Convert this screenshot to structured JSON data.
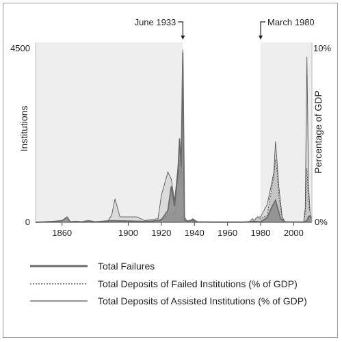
{
  "chart_data": {
    "type": "area",
    "title": "",
    "xlabel": "",
    "ylabel_left": "Institutions",
    "ylabel_right": "Percentage of GDP",
    "xlim": [
      1844,
      2011
    ],
    "xticks": [
      "1860",
      "1900",
      "1920",
      "1940",
      "1960",
      "1980",
      "2000"
    ],
    "ylim_left": [
      0,
      4500
    ],
    "yticks_left": [
      "0",
      "4500"
    ],
    "ylim_right_pct": [
      0,
      10
    ],
    "yticks_right": [
      "0%",
      "10%"
    ],
    "shaded_periods": [
      [
        1844,
        1933
      ],
      [
        1980,
        2011
      ]
    ],
    "annotations": [
      {
        "text": "June 1933",
        "x": 1933
      },
      {
        "text": "March 1980",
        "x": 1980
      }
    ],
    "series": [
      {
        "name": "Total Failures",
        "axis": "left",
        "style": "solid-thick",
        "color": "#6a6a6a",
        "fill": "#8c8c8c",
        "points": [
          [
            1844,
            0
          ],
          [
            1855,
            20
          ],
          [
            1860,
            40
          ],
          [
            1863,
            130
          ],
          [
            1865,
            10
          ],
          [
            1868,
            20
          ],
          [
            1872,
            10
          ],
          [
            1876,
            40
          ],
          [
            1880,
            10
          ],
          [
            1890,
            40
          ],
          [
            1900,
            30
          ],
          [
            1910,
            20
          ],
          [
            1915,
            30
          ],
          [
            1920,
            60
          ],
          [
            1924,
            300
          ],
          [
            1926,
            900
          ],
          [
            1928,
            400
          ],
          [
            1930,
            1200
          ],
          [
            1931,
            2100
          ],
          [
            1932,
            1400
          ],
          [
            1933,
            4250
          ],
          [
            1934,
            50
          ],
          [
            1936,
            30
          ],
          [
            1939,
            60
          ],
          [
            1942,
            10
          ],
          [
            1950,
            5
          ],
          [
            1970,
            5
          ],
          [
            1975,
            20
          ],
          [
            1980,
            10
          ],
          [
            1984,
            120
          ],
          [
            1987,
            400
          ],
          [
            1989,
            550
          ],
          [
            1991,
            250
          ],
          [
            1992,
            100
          ],
          [
            1994,
            10
          ],
          [
            2006,
            5
          ],
          [
            2008,
            40
          ],
          [
            2009,
            150
          ],
          [
            2010,
            160
          ],
          [
            2011,
            90
          ]
        ]
      },
      {
        "name": "Total Deposits of Failed Institutions (% of GDP)",
        "axis": "right",
        "style": "dotted",
        "color": "#444444",
        "fill": "#bdbdbd",
        "points": [
          [
            1844,
            0
          ],
          [
            1918,
            0
          ],
          [
            1920,
            0.2
          ],
          [
            1924,
            0.4
          ],
          [
            1928,
            0.5
          ],
          [
            1930,
            1.5
          ],
          [
            1931,
            3.5
          ],
          [
            1932,
            2.0
          ],
          [
            1933,
            8.0
          ],
          [
            1934,
            0.2
          ],
          [
            1936,
            0
          ],
          [
            1939,
            0.1
          ],
          [
            1942,
            0
          ],
          [
            1973,
            0
          ],
          [
            1975,
            0.2
          ],
          [
            1976,
            0.1
          ],
          [
            1978,
            0.3
          ],
          [
            1980,
            0.2
          ],
          [
            1984,
            0.4
          ],
          [
            1986,
            1.5
          ],
          [
            1988,
            2.6
          ],
          [
            1989,
            3.5
          ],
          [
            1990,
            2.8
          ],
          [
            1991,
            1.5
          ],
          [
            1993,
            0.2
          ],
          [
            1995,
            0
          ],
          [
            2006,
            0
          ],
          [
            2007,
            0.5
          ],
          [
            2008,
            3.0
          ],
          [
            2009,
            1.0
          ],
          [
            2010,
            0.5
          ],
          [
            2011,
            0
          ]
        ]
      },
      {
        "name": "Total Deposits of Assisted Institutions (% of GDP)",
        "axis": "right",
        "style": "solid-thin",
        "color": "#555555",
        "fill": "#d4d4d4",
        "points": [
          [
            1844,
            0
          ],
          [
            1880,
            0
          ],
          [
            1888,
            0.1
          ],
          [
            1890,
            0.4
          ],
          [
            1892,
            1.3
          ],
          [
            1895,
            0.3
          ],
          [
            1905,
            0.3
          ],
          [
            1910,
            0.1
          ],
          [
            1918,
            0.2
          ],
          [
            1920,
            1.5
          ],
          [
            1924,
            2.8
          ],
          [
            1926,
            2.4
          ],
          [
            1928,
            1.2
          ],
          [
            1930,
            3.0
          ],
          [
            1931,
            4.2
          ],
          [
            1932,
            3.0
          ],
          [
            1933,
            9.6
          ],
          [
            1934,
            0.3
          ],
          [
            1936,
            0
          ],
          [
            1939,
            0.2
          ],
          [
            1942,
            0
          ],
          [
            1973,
            0
          ],
          [
            1975,
            0.2
          ],
          [
            1976,
            0.1
          ],
          [
            1978,
            0.3
          ],
          [
            1980,
            0.3
          ],
          [
            1984,
            1.0
          ],
          [
            1987,
            2.3
          ],
          [
            1988,
            2.8
          ],
          [
            1989,
            4.5
          ],
          [
            1990,
            3.3
          ],
          [
            1991,
            2.0
          ],
          [
            1993,
            0.3
          ],
          [
            1995,
            0
          ],
          [
            2006,
            0
          ],
          [
            2007,
            0.8
          ],
          [
            2008,
            9.2
          ],
          [
            2009,
            2.0
          ],
          [
            2010,
            0.3
          ],
          [
            2011,
            0
          ]
        ]
      }
    ],
    "legend_position": "bottom"
  }
}
